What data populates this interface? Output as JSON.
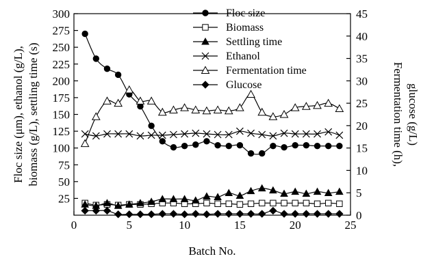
{
  "chart_data": {
    "type": "line",
    "xlabel": "Batch No.",
    "ylabel_left": [
      "Floc size (μm), ethanol (g/L),",
      "biomass (g/L), settling time (s)"
    ],
    "ylabel_right": [
      "Fermentation time (h),",
      "glucose (g/L)"
    ],
    "xlim": [
      0,
      25
    ],
    "ylim_left": [
      0,
      300
    ],
    "ylim_right": [
      0,
      45
    ],
    "x_ticks": [
      0,
      5,
      10,
      15,
      20,
      25
    ],
    "y_left_ticks": [
      25,
      50,
      75,
      100,
      125,
      150,
      175,
      200,
      225,
      250,
      275,
      300
    ],
    "y_right_ticks": [
      0,
      5,
      10,
      15,
      20,
      25,
      30,
      35,
      40,
      45
    ],
    "x_tick_labels": [
      "0",
      "5",
      "10",
      "15",
      "20",
      "25"
    ],
    "y_left_tick_labels": [
      "25",
      "50",
      "75",
      "100",
      "125",
      "150",
      "175",
      "200",
      "225",
      "250",
      "275",
      "300"
    ],
    "y_right_tick_labels": [
      "0",
      "5",
      "10",
      "15",
      "20",
      "25",
      "30",
      "35",
      "40",
      "45"
    ],
    "x": [
      1,
      2,
      3,
      4,
      5,
      6,
      7,
      8,
      9,
      10,
      11,
      12,
      13,
      14,
      15,
      16,
      17,
      18,
      19,
      20,
      21,
      22,
      23,
      24
    ],
    "legend_position": "top-center",
    "series": [
      {
        "name": "Floc size",
        "axis": "left",
        "marker": "circle-filled",
        "values": [
          270,
          233,
          218,
          209,
          180,
          162,
          133,
          110,
          101,
          103,
          105,
          110,
          104,
          103,
          104,
          92,
          92,
          103,
          101,
          104,
          104,
          103,
          103,
          103
        ]
      },
      {
        "name": "Biomass",
        "axis": "left",
        "marker": "square-open",
        "values": [
          18,
          15,
          16,
          15,
          16,
          16,
          17,
          18,
          18,
          17,
          17,
          18,
          17,
          17,
          16,
          17,
          18,
          18,
          18,
          18,
          18,
          17,
          18,
          17
        ]
      },
      {
        "name": "Settling time",
        "axis": "left",
        "marker": "triangle-filled",
        "values": [
          16,
          14,
          18,
          14,
          16,
          18,
          20,
          24,
          24,
          24,
          22,
          28,
          27,
          33,
          29,
          36,
          40,
          37,
          32,
          35,
          32,
          35,
          33,
          35
        ]
      },
      {
        "name": "Ethanol",
        "axis": "left",
        "marker": "x",
        "values": [
          121,
          118,
          121,
          121,
          121,
          118,
          119,
          119,
          120,
          121,
          122,
          121,
          120,
          120,
          125,
          122,
          120,
          118,
          122,
          121,
          121,
          121,
          124,
          119
        ]
      },
      {
        "name": "Fermentation time",
        "axis": "right",
        "marker": "triangle-open",
        "values": [
          16,
          22,
          25.5,
          25,
          28,
          25.5,
          25.5,
          23,
          23.5,
          24,
          23.5,
          23.3,
          23.5,
          23.3,
          24,
          27,
          23,
          22,
          22.5,
          24,
          24.3,
          24.5,
          25,
          23.8
        ]
      },
      {
        "name": "Glucose",
        "axis": "right",
        "marker": "diamond-filled",
        "values": [
          1,
          1,
          1,
          0.2,
          0.2,
          0.2,
          0.2,
          0.3,
          0.3,
          0.2,
          0.3,
          0.2,
          0.3,
          0.3,
          0.3,
          0.3,
          0.3,
          1,
          0.3,
          0.3,
          0.3,
          0.3,
          0.3,
          0.3
        ]
      }
    ]
  }
}
